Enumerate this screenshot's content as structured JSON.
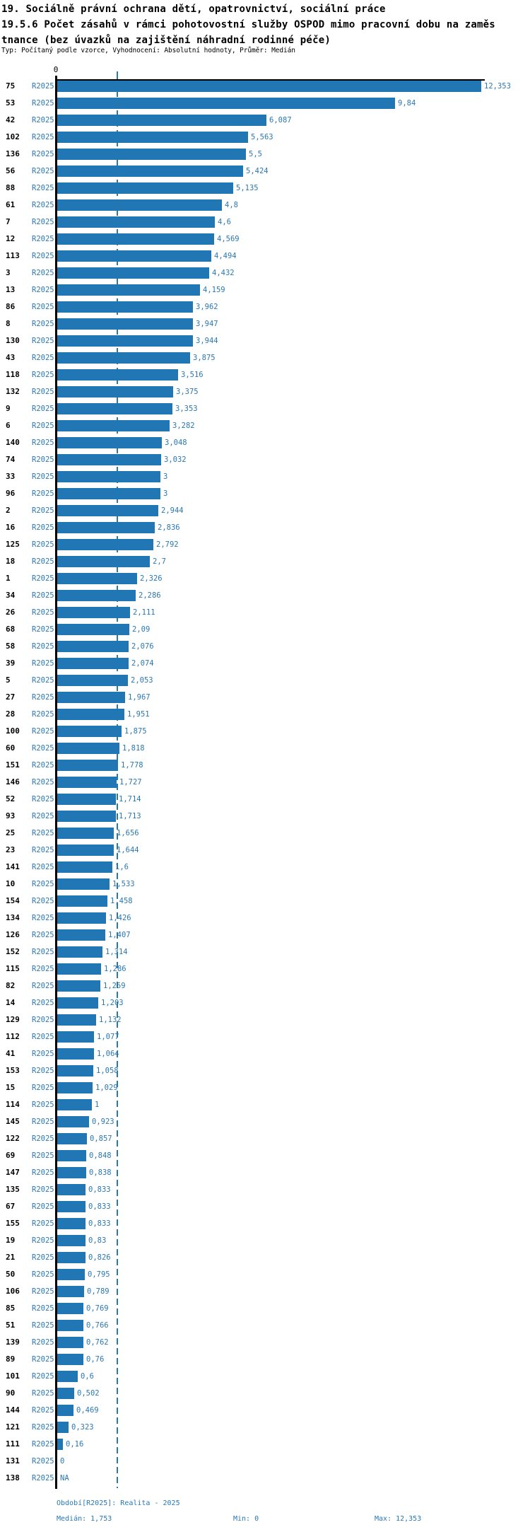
{
  "header": {
    "line1": "19. Sociálně právní ochrana dětí, opatrovnictví, sociální práce",
    "line2": "19.5.6 Počet zásahů v rámci pohotovostní služby OSPOD mimo pracovní dobu na zaměs",
    "line3": "tnance (bez úvazků na zajištění náhradní rodinné péče)",
    "meta": "Typ: Počítaný podle vzorce, Vyhodnocení: Absolutní hodnoty, Průměr: Medián"
  },
  "axis": {
    "zero_label": "0"
  },
  "footer": {
    "period": "Období[R2025]: Realita - 2025",
    "median": "Medián: 1,753",
    "min": "Min: 0",
    "max": "Max: 12,353"
  },
  "colors": {
    "bar": "#2077b4",
    "accent_text": "#2878b6",
    "axis": "#000000",
    "median_line": "#2878b6",
    "background": "#ffffff"
  },
  "chart_data": {
    "type": "bar",
    "orientation": "horizontal",
    "title": "19.5.6 Počet zásahů v rámci pohotovostní služby OSPOD mimo pracovní dobu na zaměstnance (bez úvazků na zajištění náhradní rodinné péče)",
    "series_label": "R2025",
    "xlim": [
      0,
      12.353
    ],
    "grid": false,
    "median": 1.753,
    "min": 0,
    "max": 12.353,
    "categories": [
      "75",
      "53",
      "42",
      "102",
      "136",
      "56",
      "88",
      "61",
      "7",
      "12",
      "113",
      "3",
      "13",
      "86",
      "8",
      "130",
      "43",
      "118",
      "132",
      "9",
      "6",
      "140",
      "74",
      "33",
      "96",
      "2",
      "16",
      "125",
      "18",
      "1",
      "34",
      "26",
      "68",
      "58",
      "39",
      "5",
      "27",
      "28",
      "100",
      "60",
      "151",
      "146",
      "52",
      "93",
      "25",
      "23",
      "141",
      "10",
      "154",
      "134",
      "126",
      "152",
      "115",
      "82",
      "14",
      "129",
      "112",
      "41",
      "153",
      "15",
      "114",
      "145",
      "122",
      "69",
      "147",
      "135",
      "67",
      "155",
      "19",
      "21",
      "50",
      "106",
      "85",
      "51",
      "139",
      "89",
      "101",
      "90",
      "144",
      "121",
      "111",
      "131",
      "138"
    ],
    "values": [
      12.353,
      9.84,
      6.087,
      5.563,
      5.5,
      5.424,
      5.135,
      4.8,
      4.6,
      4.569,
      4.494,
      4.432,
      4.159,
      3.962,
      3.947,
      3.944,
      3.875,
      3.516,
      3.375,
      3.353,
      3.282,
      3.048,
      3.032,
      3,
      3,
      2.944,
      2.836,
      2.792,
      2.7,
      2.326,
      2.286,
      2.111,
      2.09,
      2.076,
      2.074,
      2.053,
      1.967,
      1.951,
      1.875,
      1.818,
      1.778,
      1.727,
      1.714,
      1.713,
      1.656,
      1.644,
      1.6,
      1.533,
      1.458,
      1.426,
      1.407,
      1.314,
      1.286,
      1.259,
      1.203,
      1.132,
      1.077,
      1.064,
      1.058,
      1.029,
      1,
      0.923,
      0.857,
      0.848,
      0.838,
      0.833,
      0.833,
      0.833,
      0.83,
      0.826,
      0.795,
      0.789,
      0.769,
      0.766,
      0.762,
      0.76,
      0.6,
      0.502,
      0.469,
      0.323,
      0.16,
      0,
      null
    ],
    "value_labels": [
      "12,353",
      "9,84",
      "6,087",
      "5,563",
      "5,5",
      "5,424",
      "5,135",
      "4,8",
      "4,6",
      "4,569",
      "4,494",
      "4,432",
      "4,159",
      "3,962",
      "3,947",
      "3,944",
      "3,875",
      "3,516",
      "3,375",
      "3,353",
      "3,282",
      "3,048",
      "3,032",
      "3",
      "3",
      "2,944",
      "2,836",
      "2,792",
      "2,7",
      "2,326",
      "2,286",
      "2,111",
      "2,09",
      "2,076",
      "2,074",
      "2,053",
      "1,967",
      "1,951",
      "1,875",
      "1,818",
      "1,778",
      "1,727",
      "1,714",
      "1,713",
      "1,656",
      "1,644",
      "1,6",
      "1,533",
      "1,458",
      "1,426",
      "1,407",
      "1,314",
      "1,286",
      "1,259",
      "1,203",
      "1,132",
      "1,077",
      "1,064",
      "1,058",
      "1,029",
      "1",
      "0,923",
      "0,857",
      "0,848",
      "0,838",
      "0,833",
      "0,833",
      "0,833",
      "0,83",
      "0,826",
      "0,795",
      "0,789",
      "0,769",
      "0,766",
      "0,762",
      "0,76",
      "0,6",
      "0,502",
      "0,469",
      "0,323",
      "0,16",
      "0",
      "NA"
    ]
  }
}
